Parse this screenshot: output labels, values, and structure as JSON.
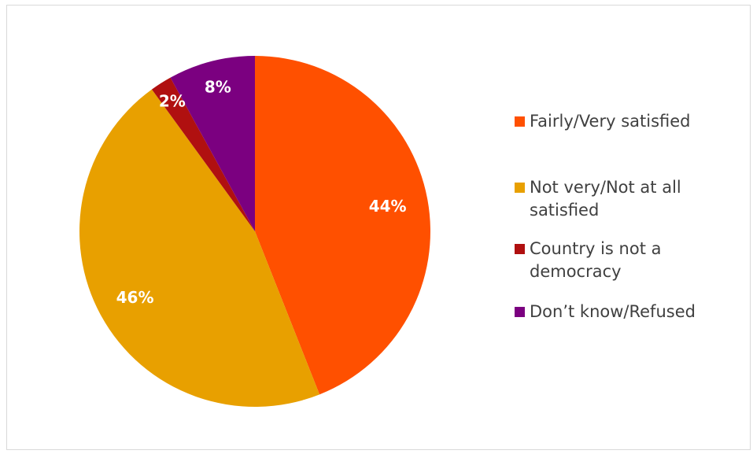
{
  "chart_data": {
    "type": "pie",
    "title": "",
    "categories": [
      "Fairly/Very satisfied",
      "Not very/Not at all satisfied",
      "Country is not a democracy",
      "Don’t know/Refused"
    ],
    "values": [
      44,
      46,
      2,
      8
    ],
    "data_labels": [
      "44%",
      "46%",
      "2%",
      "8%"
    ],
    "colors": [
      "#FF5000",
      "#E8A000",
      "#B01010",
      "#7B0080"
    ],
    "start_angle_deg": 0,
    "direction": "clockwise",
    "legend_position": "right"
  },
  "legend": {
    "items": [
      {
        "label": "Fairly/Very satisfied",
        "color": "#FF5000"
      },
      {
        "label": "Not very/Not at all satisfied",
        "color": "#E8A000"
      },
      {
        "label": "Country is not a democracy",
        "color": "#B01010"
      },
      {
        "label": "Don’t know/Refused",
        "color": "#7B0080"
      }
    ]
  }
}
